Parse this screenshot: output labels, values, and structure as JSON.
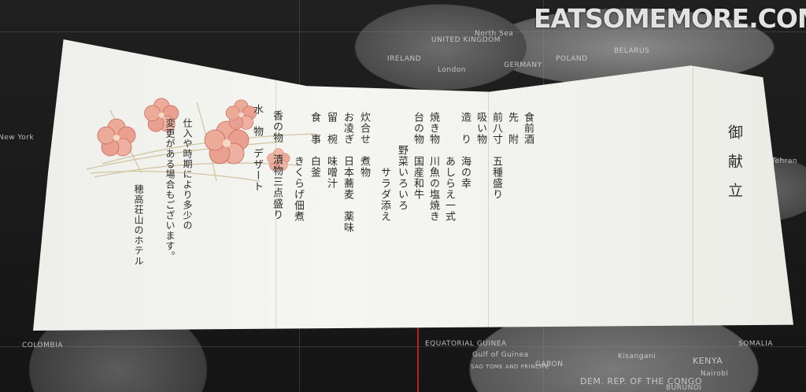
{
  "watermark": "EATSOMEMORE.COM",
  "title": "御献立",
  "menu_lines": [
    "食前酒",
    "先　附",
    "前八寸　五種盛り",
    "吸い物",
    "造　り　海の幸",
    "　　　　あしらえ一式",
    "焼き物　川魚の塩焼き",
    "台の物　国産和牛",
    "　　　野菜いろいろ",
    "　　　　　サラダ添え",
    "炊合せ　煮物",
    "お凌ぎ　日本蕎麦　薬味",
    "留　椀　味噌汁",
    "食　事　白釜",
    "　　　　きくらげ佃煮",
    "香の物　漬物三点盛り",
    "水　物　デザート"
  ],
  "notice_lines": [
    "仕入や時期により多少の",
    "変更がある場合もございます。"
  ],
  "hotel": "穂高荘山のホテル",
  "map_labels": {
    "north_sea": "North Sea",
    "united_kingdom": "UNITED KINGDOM",
    "ireland": "IRELAND",
    "london": "London",
    "germany": "GERMANY",
    "poland": "POLAND",
    "belarus": "BELARUS",
    "colombia": "COLOMBIA",
    "equatorial_guinea": "EQUATORIAL GUINEA",
    "gulf_of_guinea": "Gulf of Guinea",
    "sao_tome": "SAO TOME AND PRINCIPE",
    "gabon": "GABON",
    "dem_rep_congo": "DEM. REP. OF THE CONGO",
    "kenya": "KENYA",
    "nairobi": "Nairobi",
    "somalia": "SOMALIA",
    "burundi": "BURUNDI",
    "kisangani": "Kisangani",
    "new_york": "New York",
    "tehran": "Tehran"
  },
  "colors": {
    "paper": "#f3f3ef",
    "ink": "#2b2b2b",
    "petal": "#e79a8a",
    "petal_edge": "#c9685a",
    "meridian": "#b4231f"
  }
}
